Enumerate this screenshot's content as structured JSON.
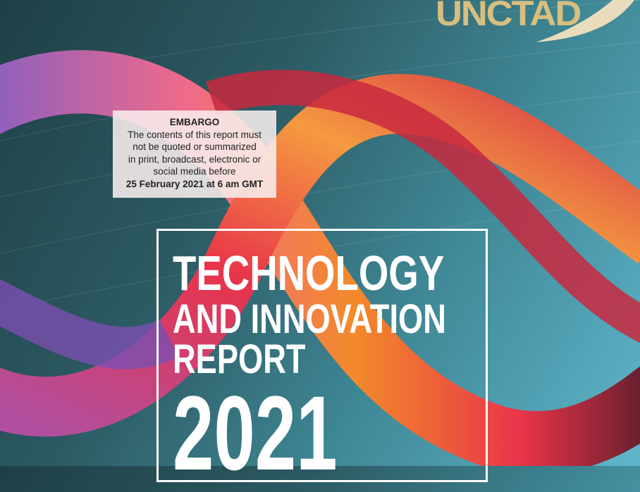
{
  "logo": {
    "text": "UNCTAD"
  },
  "embargo": {
    "heading": "EMBARGO",
    "lines": [
      "The contents of this report must",
      "not be quoted or summarized",
      "in print, broadcast, electronic or",
      "social media before"
    ],
    "date": "25 February 2021 at 6 am GMT"
  },
  "title": {
    "line1": "TECHNOLOGY",
    "line2": "AND INNOVATION",
    "line3": "REPORT",
    "year": "2021"
  },
  "colors": {
    "logo": "#d8bf7f",
    "background": "#2c5a63",
    "ribbon_red": "#e8344a",
    "ribbon_orange": "#f28a2a",
    "ribbon_purple": "#8a5fc0"
  }
}
